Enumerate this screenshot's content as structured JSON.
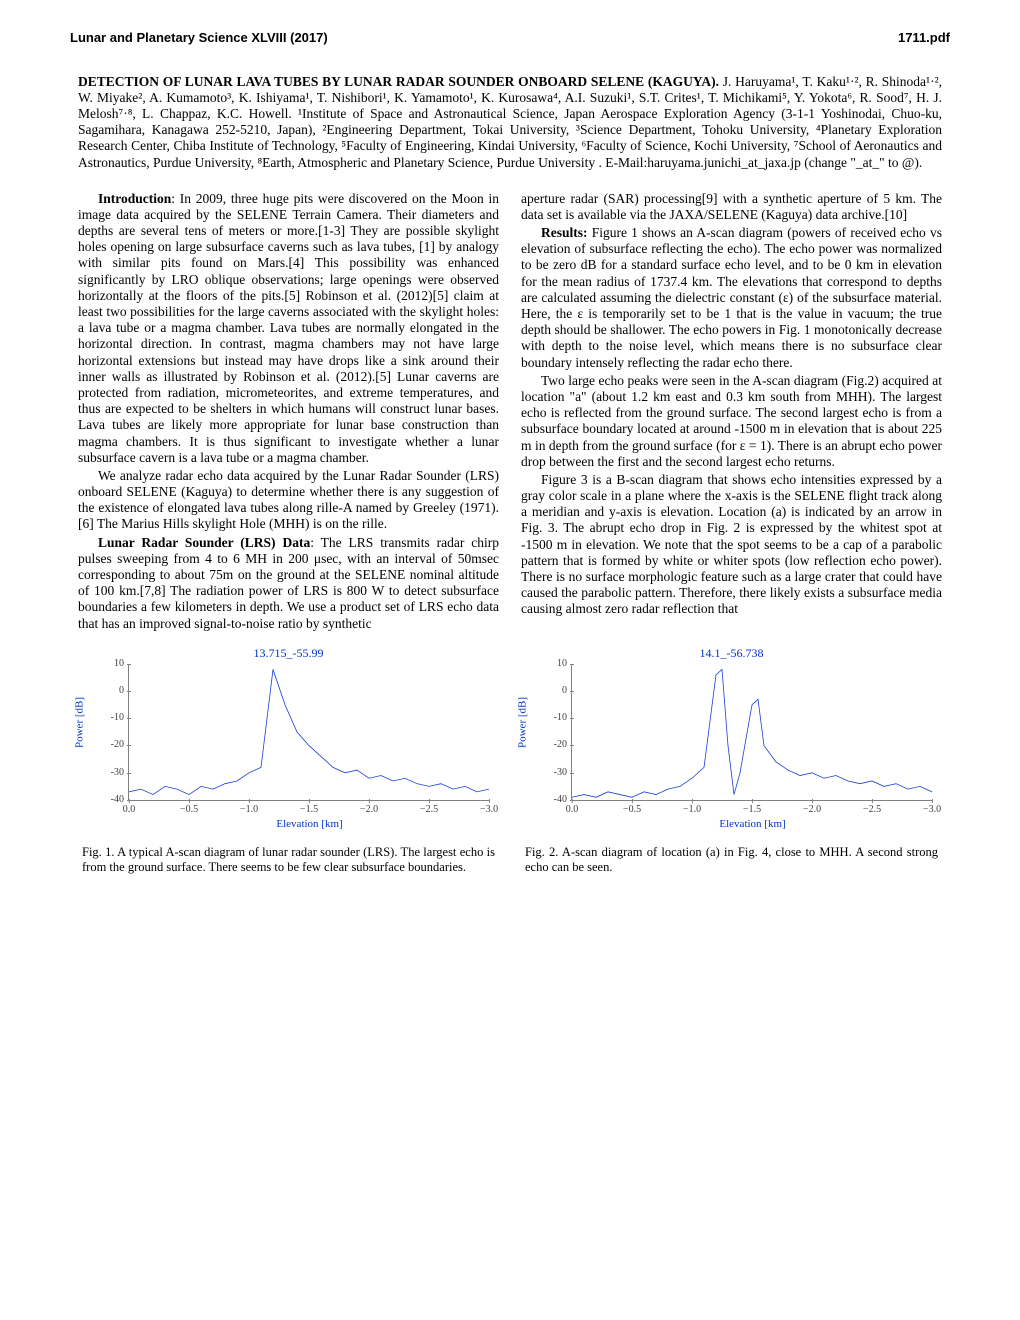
{
  "header": {
    "left": "Lunar and Planetary Science XLVIII (2017)",
    "right": "1711.pdf"
  },
  "title": "DETECTION OF LUNAR LAVA TUBES BY LUNAR RADAR SOUNDER ONBOARD SELENE (KAGUYA).",
  "authors": "J. Haruyama¹, T. Kaku¹·², R. Shinoda¹·², W. Miyake², A. Kumamoto³, K. Ishiyama¹, T. Nishibori¹, K. Yamamoto¹, K. Kurosawa⁴, A.I. Suzuki¹, S.T. Crites¹, T. Michikami⁵, Y. Yokota⁶, R. Sood⁷, H. J. Melosh⁷·⁸, L. Chappaz, K.C. Howell. ¹Institute of Space and Astronautical Science, Japan Aerospace Exploration Agency (3-1-1 Yoshinodai, Chuo-ku, Sagamihara, Kanagawa 252-5210, Japan), ²Engineering Department, Tokai University, ³Science Department, Tohoku University, ⁴Planetary Exploration Research Center, Chiba Institute of Technology, ⁵Faculty of Engineering, Kindai University, ⁶Faculty of Science, Kochi University, ⁷School of Aeronautics and Astronautics, Purdue University, ⁸Earth, Atmospheric and Planetary Science, Purdue University . E-Mail:haruyama.junichi_at_jaxa.jp (change \"_at_\" to @).",
  "body": {
    "intro_head": "Introduction",
    "intro_p1": ": In 2009, three huge pits were discovered on the Moon in image data acquired by the SELENE Terrain Camera. Their diameters and depths are several tens of meters or more.[1-3] They are possible skylight holes opening on large subsurface caverns such as lava tubes, [1] by analogy with similar pits found on Mars.[4] This possibility was enhanced significantly by LRO oblique observations; large openings were observed horizontally at the floors of the pits.[5] Robinson et al. (2012)[5] claim at least two possibilities for the large caverns associated with the skylight holes: a lava tube or a magma chamber. Lava tubes are normally elongated in the horizontal direction. In contrast, magma chambers may not have large horizontal extensions but instead may have drops like a sink around their inner walls as illustrated by Robinson et al. (2012).[5] Lunar caverns are protected from radiation, micrometeorites, and extreme temperatures, and thus are expected to be shelters in which humans will construct lunar bases. Lava tubes are likely more appropriate for lunar base construction than magma chambers. It is thus significant to investigate whether a lunar subsurface cavern is a lava tube or a magma chamber.",
    "intro_p2": "We analyze radar echo data acquired by the Lunar Radar Sounder (LRS) onboard SELENE (Kaguya) to determine whether there is any suggestion of the existence of elongated lava tubes along rille-A named by Greeley (1971).[6] The Marius Hills skylight Hole (MHH) is on the rille.",
    "lrs_head": "Lunar Radar Sounder (LRS) Data",
    "lrs_p1": ": The LRS transmits radar chirp pulses sweeping from 4 to 6 MH in 200 μsec, with an interval of 50msec corresponding to about 75m on the ground at the SELENE nominal altitude of 100 km.[7,8] The radiation power of LRS is 800 W to detect subsurface boundaries a few kilometers in depth. We use a product set of LRS echo data that has an improved signal-to-noise ratio by synthetic",
    "col2_p1": "aperture radar (SAR) processing[9] with a synthetic aperture of 5 km. The data set is available via the JAXA/SELENE (Kaguya) data archive.[10]",
    "res_head": "Results:",
    "res_p1": " Figure 1 shows an A-scan diagram (powers of received echo vs elevation of subsurface reflecting the echo). The echo power was normalized to be zero dB for a standard surface echo level, and to be 0 km in elevation for the mean radius of 1737.4 km. The elevations that correspond to depths are calculated assuming the dielectric constant (ε) of the subsurface material. Here, the ε is temporarily set to be 1 that is the value in vacuum; the true depth should be shallower. The echo powers in Fig. 1 monotonically decrease with depth to the noise level, which means there is no subsurface clear boundary intensely reflecting the radar echo there.",
    "res_p2": "Two large echo peaks were seen in the A-scan diagram (Fig.2) acquired at location \"a\" (about 1.2 km east and 0.3 km south from MHH). The largest echo is reflected from the ground surface. The second largest echo is from a subsurface boundary located at around -1500 m in elevation that is about 225 m in depth from the ground surface (for ε = 1). There is an abrupt echo power drop between the first and the second largest echo returns.",
    "res_p3": "Figure 3 is a B-scan diagram that shows echo intensities expressed by a gray color scale in a plane where the x-axis is the SELENE flight track along a meridian and y-axis is elevation. Location (a) is indicated by an arrow in Fig. 3. The abrupt echo drop in Fig. 2 is expressed by the whitest spot at -1500 m in elevation. We note that the spot seems to be a cap of a parabolic pattern that is formed by white or whiter spots (low reflection echo power). There is no surface morphologic feature such as a large crater that could have caused the parabolic pattern. Therefore, there likely exists a subsurface media causing almost zero radar reflection that"
  },
  "fig1": {
    "title": "13.715_-55.99",
    "ylabel": "Power [dB]",
    "xlabel": "Elevation [km]",
    "yticks": [
      10,
      0,
      -10,
      -20,
      -30,
      -40
    ],
    "xticks": [
      "0.0",
      "−0.5",
      "−1.0",
      "−1.5",
      "−2.0",
      "−2.5",
      "−3.0"
    ],
    "ylim": [
      -40,
      10
    ],
    "xlim": [
      0,
      -3.0
    ],
    "line_color": "#1a3fd9",
    "axis_color": "#808080",
    "tick_color": "#404040",
    "title_color": "#0033cc",
    "data_x": [
      0,
      -0.1,
      -0.2,
      -0.3,
      -0.4,
      -0.5,
      -0.6,
      -0.7,
      -0.8,
      -0.9,
      -1.0,
      -1.1,
      -1.2,
      -1.3,
      -1.4,
      -1.5,
      -1.6,
      -1.7,
      -1.8,
      -1.9,
      -2.0,
      -2.1,
      -2.2,
      -2.3,
      -2.4,
      -2.5,
      -2.6,
      -2.7,
      -2.8,
      -2.9,
      -3.0
    ],
    "data_y": [
      -37,
      -36,
      -38,
      -35,
      -36,
      -38,
      -35,
      -36,
      -34,
      -33,
      -30,
      -28,
      8,
      -5,
      -15,
      -20,
      -24,
      -28,
      -30,
      -29,
      -32,
      -31,
      -33,
      -32,
      -34,
      -35,
      -34,
      -36,
      -35,
      -37,
      -36
    ],
    "caption": "Fig. 1. A typical A-scan diagram of lunar radar sounder (LRS). The largest echo is from the ground surface. There seems to be few clear subsurface boundaries."
  },
  "fig2": {
    "title": "14.1_-56.738",
    "ylabel": "Power [dB]",
    "xlabel": "Elevation [km]",
    "yticks": [
      10,
      0,
      -10,
      -20,
      -30,
      -40
    ],
    "xticks": [
      "0.0",
      "−0.5",
      "−1.0",
      "−1.5",
      "−2.0",
      "−2.5",
      "−3.0"
    ],
    "ylim": [
      -40,
      10
    ],
    "xlim": [
      0,
      -3.0
    ],
    "line_color": "#1a3fd9",
    "axis_color": "#808080",
    "tick_color": "#404040",
    "title_color": "#0033cc",
    "data_x": [
      0,
      -0.1,
      -0.2,
      -0.3,
      -0.4,
      -0.5,
      -0.6,
      -0.7,
      -0.8,
      -0.9,
      -1.0,
      -1.1,
      -1.2,
      -1.25,
      -1.3,
      -1.35,
      -1.4,
      -1.5,
      -1.55,
      -1.6,
      -1.7,
      -1.8,
      -1.9,
      -2.0,
      -2.1,
      -2.2,
      -2.3,
      -2.4,
      -2.5,
      -2.6,
      -2.7,
      -2.8,
      -2.9,
      -3.0
    ],
    "data_y": [
      -39,
      -38,
      -39,
      -37,
      -38,
      -39,
      -37,
      -38,
      -36,
      -35,
      -32,
      -28,
      6,
      8,
      -20,
      -38,
      -30,
      -5,
      -3,
      -20,
      -26,
      -29,
      -31,
      -30,
      -32,
      -31,
      -33,
      -34,
      -33,
      -35,
      -34,
      -36,
      -35,
      -37
    ],
    "caption": "Fig. 2. A-scan diagram of location (a) in Fig. 4, close to MHH. A second strong echo can be seen."
  }
}
